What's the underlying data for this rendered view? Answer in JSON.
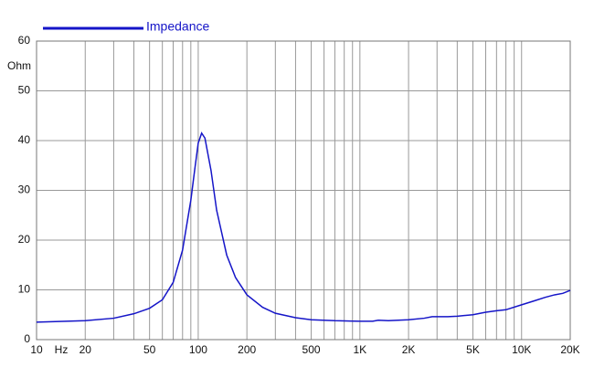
{
  "chart_data": {
    "type": "line",
    "x_unit": "Hz",
    "y_unit": "Ohm",
    "xscale": "log",
    "xlim": [
      10,
      20000
    ],
    "ylim": [
      0,
      60
    ],
    "xticks": [
      10,
      20,
      50,
      100,
      200,
      500,
      {
        "value": 1000,
        "label": "1K"
      },
      {
        "value": 2000,
        "label": "2K"
      },
      {
        "value": 5000,
        "label": "5K"
      },
      {
        "value": 10000,
        "label": "10K"
      },
      {
        "value": 20000,
        "label": "20K"
      }
    ],
    "xminor": [
      30,
      40,
      60,
      70,
      80,
      90,
      300,
      400,
      600,
      700,
      800,
      900,
      3000,
      4000,
      6000,
      7000,
      8000,
      9000
    ],
    "yticks": [
      0,
      10,
      20,
      30,
      40,
      50,
      60
    ],
    "grid": true,
    "legend": "top-left",
    "series": [
      {
        "name": "Impedance",
        "color": "#1515c8",
        "x": [
          10,
          20,
          30,
          40,
          50,
          60,
          70,
          80,
          90,
          95,
          100,
          105,
          110,
          120,
          130,
          150,
          170,
          200,
          250,
          300,
          400,
          500,
          700,
          1000,
          1200,
          1300,
          1500,
          2000,
          2500,
          2800,
          3500,
          4000,
          5000,
          6000,
          7000,
          8000,
          10000,
          12000,
          14000,
          16000,
          18000,
          20000
        ],
        "values": [
          3.5,
          3.8,
          4.3,
          5.2,
          6.3,
          8.0,
          11.5,
          18,
          28,
          34,
          39.5,
          41.5,
          40.5,
          34,
          26,
          17,
          12.5,
          9,
          6.5,
          5.3,
          4.4,
          4.0,
          3.8,
          3.7,
          3.7,
          3.9,
          3.8,
          4.0,
          4.3,
          4.6,
          4.6,
          4.7,
          5.0,
          5.5,
          5.8,
          6.0,
          7.0,
          7.8,
          8.5,
          9.0,
          9.3,
          9.9
        ]
      }
    ]
  }
}
